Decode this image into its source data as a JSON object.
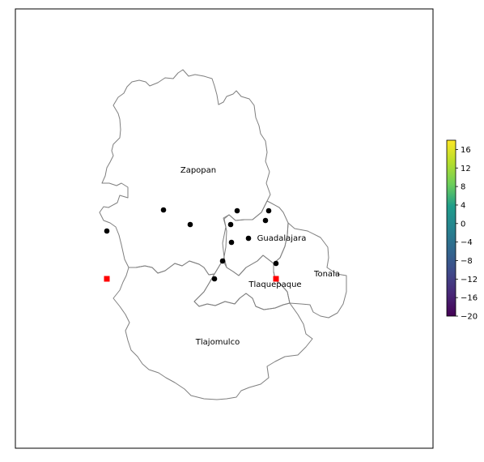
{
  "map": {
    "regions": [
      {
        "id": "zapopan",
        "label": "Zapopan"
      },
      {
        "id": "guadalajara",
        "label": "Guadalajara"
      },
      {
        "id": "tlaquepaque",
        "label": "Tlaquepaque"
      },
      {
        "id": "tonala",
        "label": "Tonala"
      },
      {
        "id": "tlajomulco",
        "label": "Tlajomulco"
      }
    ],
    "boundary_color": "#7f7f7f",
    "point_marker_color": "#000000",
    "square_marker_color": "#ff0000"
  },
  "colorbar": {
    "colormap": "viridis",
    "min": -20,
    "max": 18,
    "tick_labels": [
      "16",
      "12",
      "8",
      "4",
      "0",
      "−4",
      "−8",
      "−12",
      "−16",
      "−20"
    ]
  }
}
